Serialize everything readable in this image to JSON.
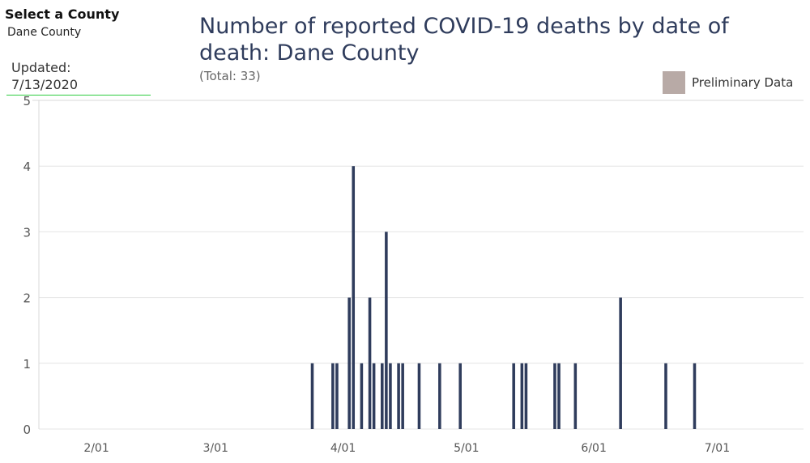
{
  "filter": {
    "label": "Select a County",
    "selected": "Dane County"
  },
  "updated": {
    "label": "Updated:",
    "date": "7/13/2020"
  },
  "chart_data": {
    "type": "bar",
    "title": "Number of reported COVID-19 deaths by date of death: Dane County",
    "subtitle": "(Total: 33)",
    "legend": [
      {
        "label": "Preliminary Data",
        "color": "#b8aaa6"
      }
    ],
    "bar_color": "#2f3c5c",
    "x_range": [
      "2020-01-18",
      "2020-07-22"
    ],
    "x_ticks": [
      {
        "date": "2020-02-01",
        "label": "2/01"
      },
      {
        "date": "2020-03-01",
        "label": "3/01"
      },
      {
        "date": "2020-04-01",
        "label": "4/01"
      },
      {
        "date": "2020-05-01",
        "label": "5/01"
      },
      {
        "date": "2020-06-01",
        "label": "6/01"
      },
      {
        "date": "2020-07-01",
        "label": "7/01"
      }
    ],
    "ylim": [
      0,
      5
    ],
    "y_ticks": [
      0,
      1,
      2,
      3,
      4,
      5
    ],
    "grid": true,
    "data": [
      {
        "date": "2020-03-24",
        "value": 1
      },
      {
        "date": "2020-03-29",
        "value": 1
      },
      {
        "date": "2020-03-30",
        "value": 1
      },
      {
        "date": "2020-04-02",
        "value": 2
      },
      {
        "date": "2020-04-03",
        "value": 4
      },
      {
        "date": "2020-04-05",
        "value": 1
      },
      {
        "date": "2020-04-07",
        "value": 2
      },
      {
        "date": "2020-04-08",
        "value": 1
      },
      {
        "date": "2020-04-10",
        "value": 1
      },
      {
        "date": "2020-04-11",
        "value": 3
      },
      {
        "date": "2020-04-12",
        "value": 1
      },
      {
        "date": "2020-04-14",
        "value": 1
      },
      {
        "date": "2020-04-15",
        "value": 1
      },
      {
        "date": "2020-04-19",
        "value": 1
      },
      {
        "date": "2020-04-24",
        "value": 1
      },
      {
        "date": "2020-04-29",
        "value": 1
      },
      {
        "date": "2020-05-12",
        "value": 1
      },
      {
        "date": "2020-05-14",
        "value": 1
      },
      {
        "date": "2020-05-15",
        "value": 1
      },
      {
        "date": "2020-05-22",
        "value": 1
      },
      {
        "date": "2020-05-23",
        "value": 1
      },
      {
        "date": "2020-05-27",
        "value": 1
      },
      {
        "date": "2020-06-07",
        "value": 2
      },
      {
        "date": "2020-06-18",
        "value": 1
      },
      {
        "date": "2020-06-25",
        "value": 1
      }
    ]
  }
}
